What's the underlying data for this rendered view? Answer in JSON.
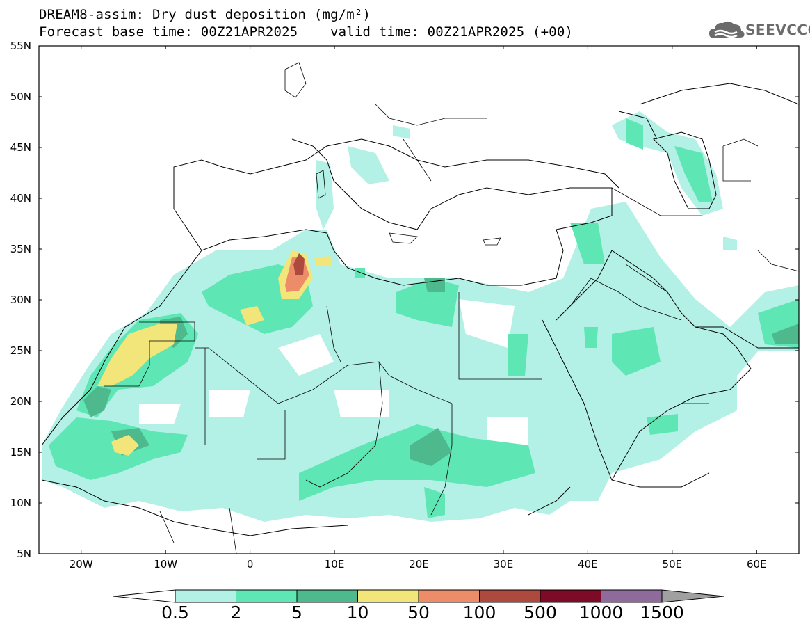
{
  "title": {
    "line1": "DREAM8-assim: Dry dust deposition (mg/m²)",
    "line2": "Forecast base time: 00Z21APR2025    valid time: 00Z21APR2025 (+00)"
  },
  "logo": {
    "text": "SEEVCCC"
  },
  "map": {
    "lon_range": [
      -25,
      65
    ],
    "lat_range": [
      5,
      55
    ],
    "lat_labels": [
      "55N",
      "50N",
      "45N",
      "40N",
      "35N",
      "30N",
      "25N",
      "20N",
      "15N",
      "10N",
      "5N"
    ],
    "lon_labels": [
      "20W",
      "10W",
      "0",
      "10E",
      "20E",
      "30E",
      "40E",
      "50E",
      "60E"
    ]
  },
  "legend": {
    "labels": [
      "0.5",
      "2",
      "5",
      "10",
      "50",
      "100",
      "500",
      "1000",
      "1500"
    ],
    "colors": [
      "#b3f0e6",
      "#5ee6b5",
      "#4fb98e",
      "#f2e57a",
      "#ec8c68",
      "#ad4a3e",
      "#7d0a26",
      "#8e6b9b"
    ]
  }
}
